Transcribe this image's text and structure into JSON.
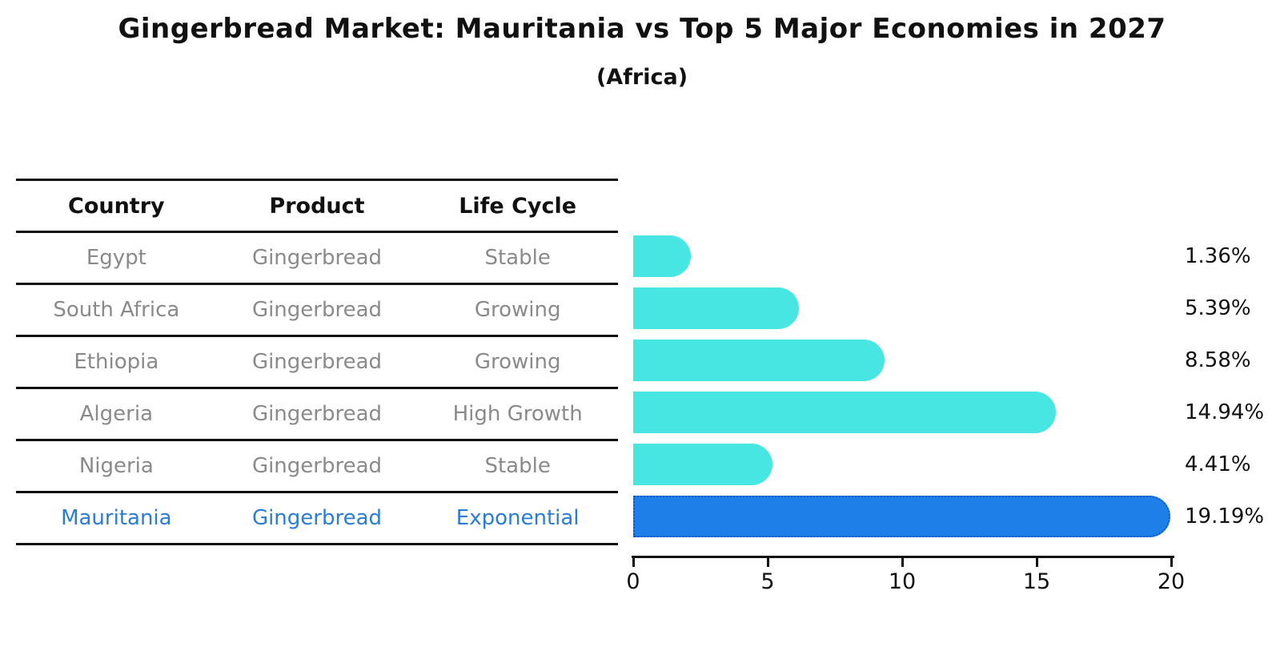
{
  "chart_data": {
    "type": "bar",
    "orientation": "horizontal",
    "title": "Gingerbread Market: Mauritania vs Top 5 Major Economies in 2027",
    "subtitle": "(Africa)",
    "categories": [
      "Egypt",
      "South Africa",
      "Ethiopia",
      "Algeria",
      "Nigeria",
      "Mauritania"
    ],
    "values": [
      1.36,
      5.39,
      8.58,
      14.94,
      4.41,
      19.19
    ],
    "value_labels": [
      "1.36%",
      "5.39%",
      "8.58%",
      "14.94%",
      "4.41%",
      "19.19%"
    ],
    "highlight_index": 5,
    "xlim": [
      0,
      20
    ],
    "x_ticks": [
      0,
      5,
      10,
      15,
      20
    ],
    "grid": false,
    "legend": null,
    "xlabel": "",
    "ylabel": ""
  },
  "table": {
    "headers": [
      "Country",
      "Product",
      "Life Cycle"
    ],
    "rows": [
      [
        "Egypt",
        "Gingerbread",
        "Stable"
      ],
      [
        "South Africa",
        "Gingerbread",
        "Growing"
      ],
      [
        "Ethiopia",
        "Gingerbread",
        "Growing"
      ],
      [
        "Algeria",
        "Gingerbread",
        "High Growth"
      ],
      [
        "Nigeria",
        "Gingerbread",
        "Stable"
      ],
      [
        "Mauritania",
        "Gingerbread",
        "Exponential"
      ]
    ]
  },
  "colors": {
    "bar": "#47e6e2",
    "highlight_bar": "#1e7fe8",
    "highlight_border": "#0a57cc",
    "highlight_text": "#2b7cd9",
    "row_text": "#8a8a8a",
    "text": "#111111"
  }
}
